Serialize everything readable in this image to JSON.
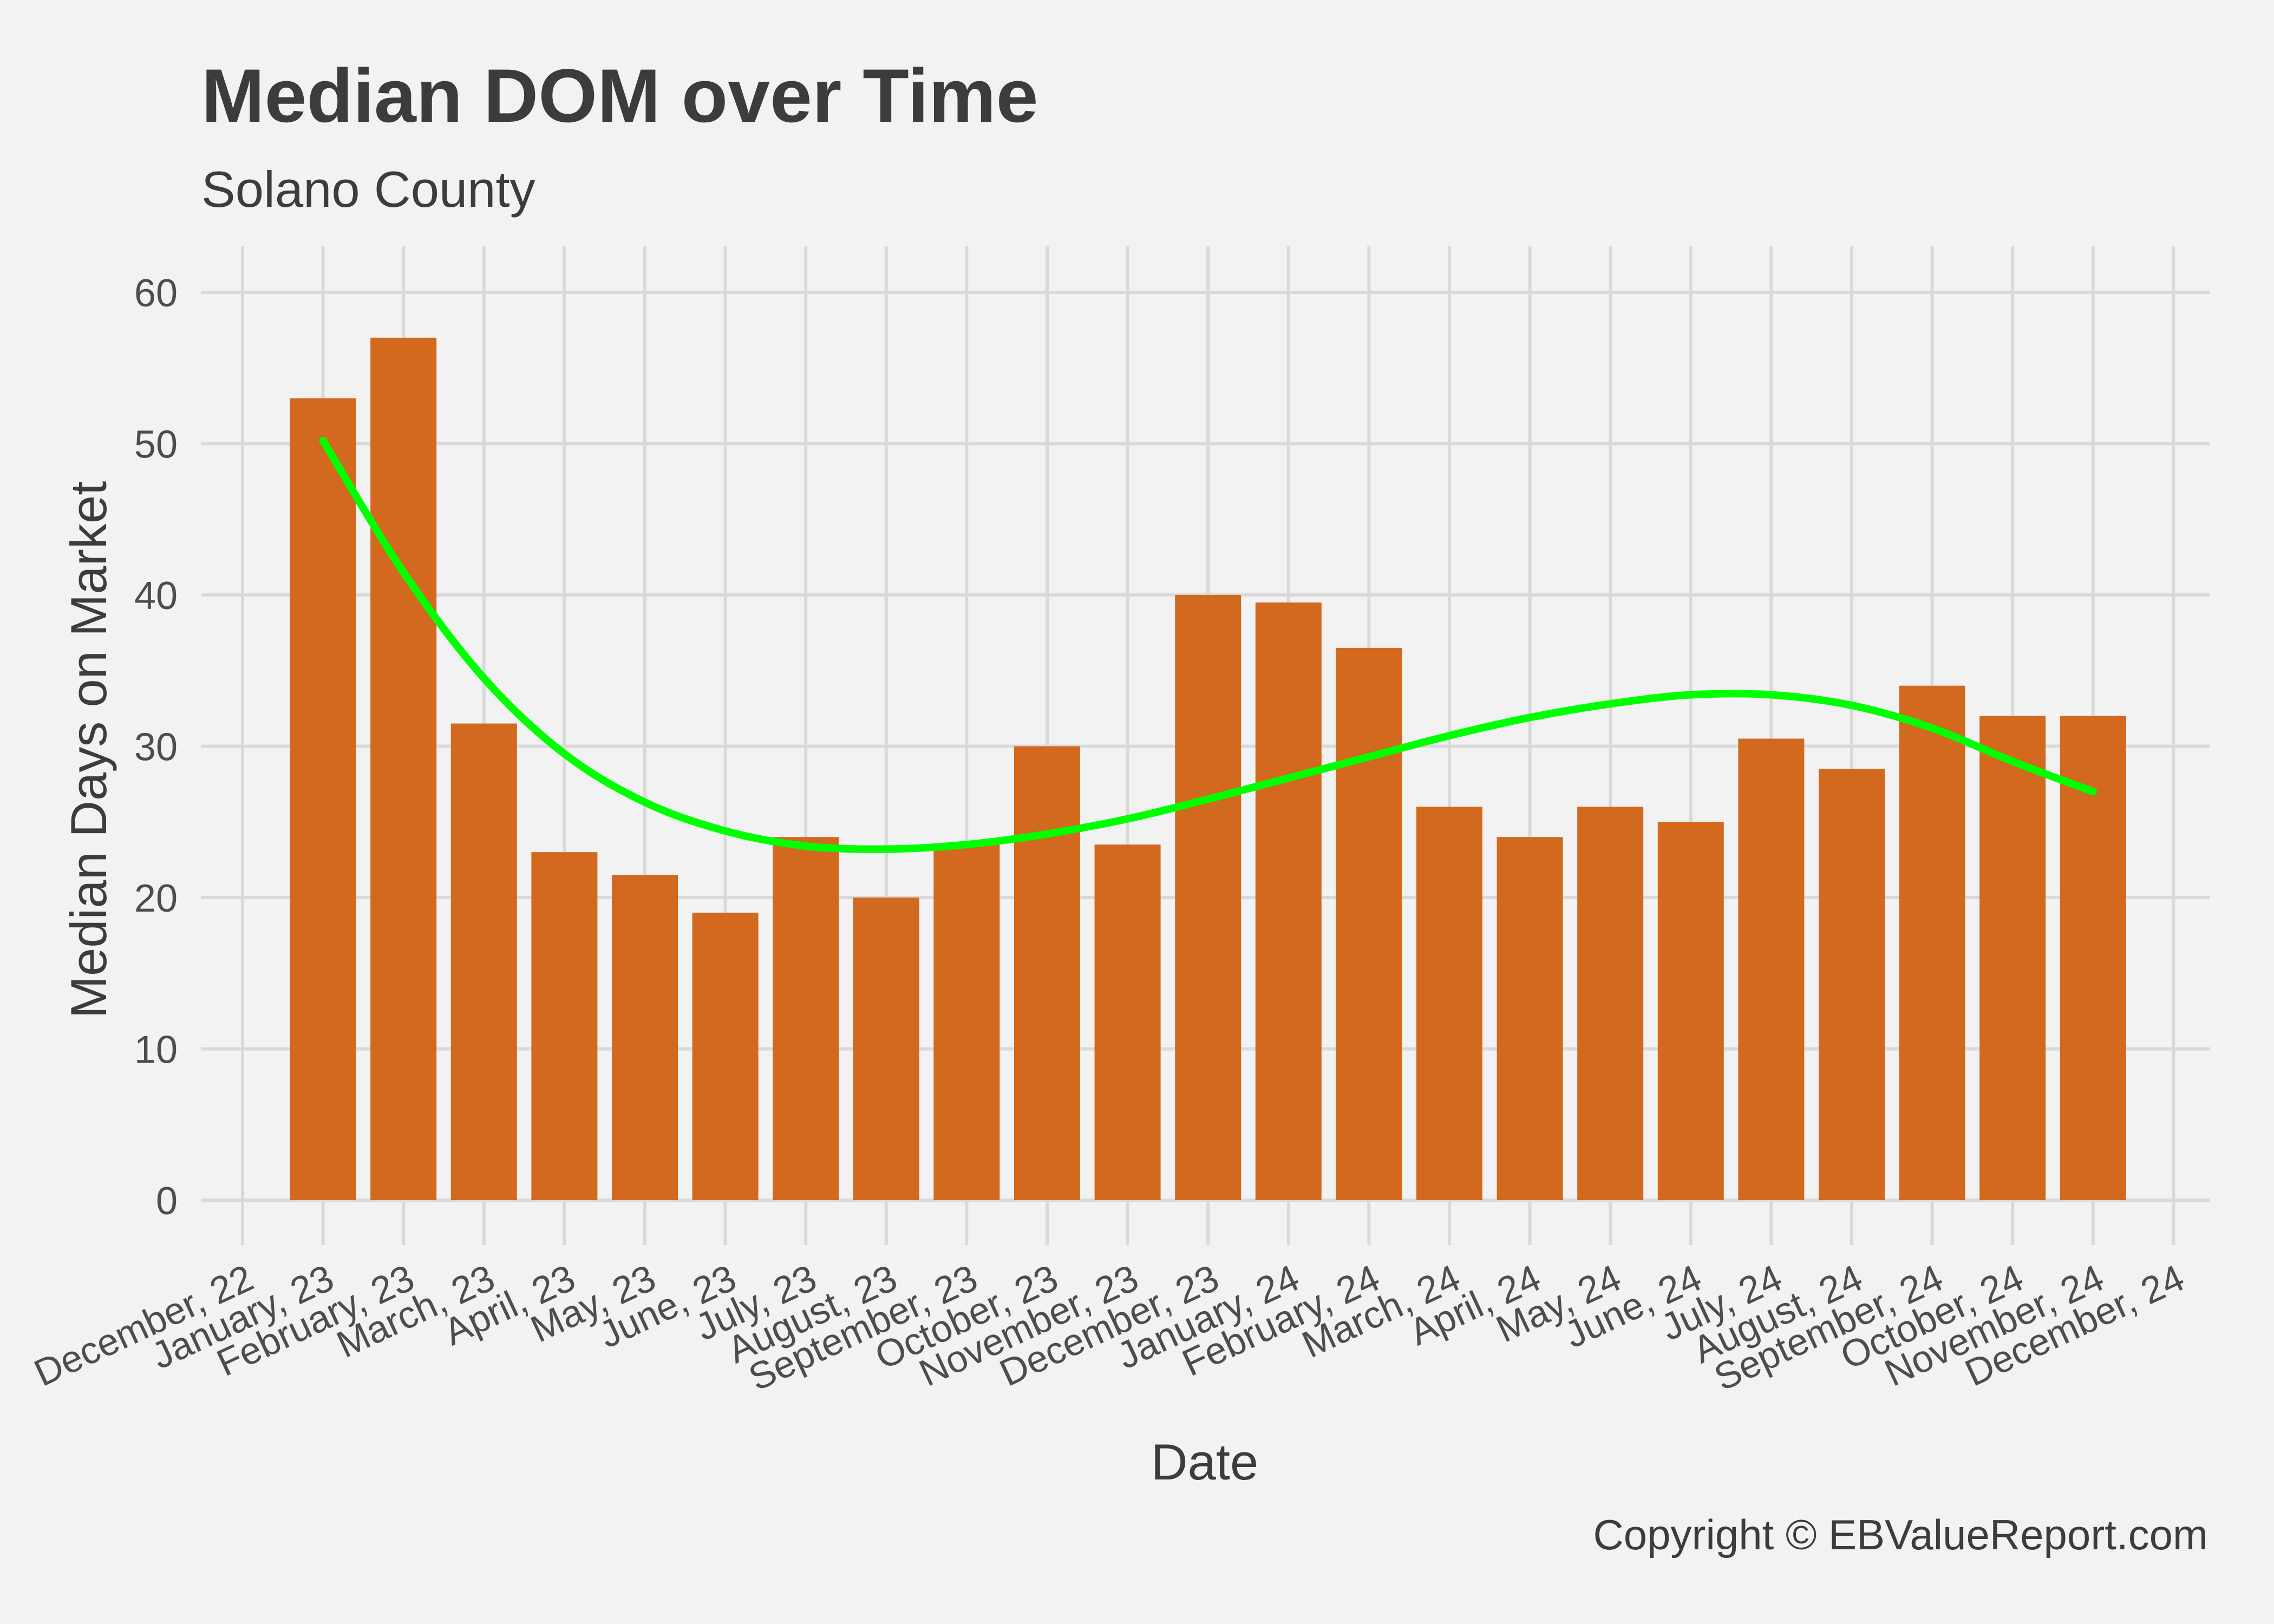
{
  "chart_data": {
    "type": "bar",
    "title": "Median DOM over Time",
    "subtitle": "Solano County",
    "xlabel": "Date",
    "ylabel": "Median Days on Market",
    "x_tick_labels": [
      "December, 22",
      "January, 23",
      "February, 23",
      "March, 23",
      "April, 23",
      "May, 23",
      "June, 23",
      "July, 23",
      "August, 23",
      "September, 23",
      "October, 23",
      "November, 23",
      "December, 23",
      "January, 24",
      "February, 24",
      "March, 24",
      "April, 24",
      "May, 24",
      "June, 24",
      "July, 24",
      "August, 24",
      "September, 24",
      "October, 24",
      "November, 24",
      "December, 24"
    ],
    "categories": [
      "January, 23",
      "February, 23",
      "March, 23",
      "April, 23",
      "May, 23",
      "June, 23",
      "July, 23",
      "August, 23",
      "September, 23",
      "October, 23",
      "November, 23",
      "December, 23",
      "January, 24",
      "February, 24",
      "March, 24",
      "April, 24",
      "May, 24",
      "June, 24",
      "July, 24",
      "August, 24",
      "September, 24",
      "October, 24",
      "November, 24"
    ],
    "values": [
      53,
      57,
      31.5,
      23,
      21.5,
      19,
      24,
      20,
      23.5,
      30,
      23.5,
      40,
      39.5,
      36.5,
      26,
      24,
      26,
      25,
      30.5,
      28.5,
      34,
      32,
      32
    ],
    "trend": {
      "type": "smooth-line",
      "values": [
        50.2,
        41.5,
        34.5,
        29.5,
        26.3,
        24.4,
        23.4,
        23.2,
        23.5,
        24.2,
        25.2,
        26.5,
        27.9,
        29.3,
        30.7,
        31.9,
        32.8,
        33.4,
        33.4,
        32.7,
        31.2,
        29.0,
        27.0
      ]
    },
    "ylim": [
      0,
      60
    ],
    "yticks": [
      0,
      10,
      20,
      30,
      40,
      50,
      60
    ],
    "grid": true,
    "legend": "none",
    "bar_color": "#d2691e",
    "trend_color": "#00ff00",
    "grid_color": "#d9d9d9",
    "background": "#f2f2f2"
  },
  "footer": {
    "copyright": "Copyright  © EBValueReport.com"
  }
}
